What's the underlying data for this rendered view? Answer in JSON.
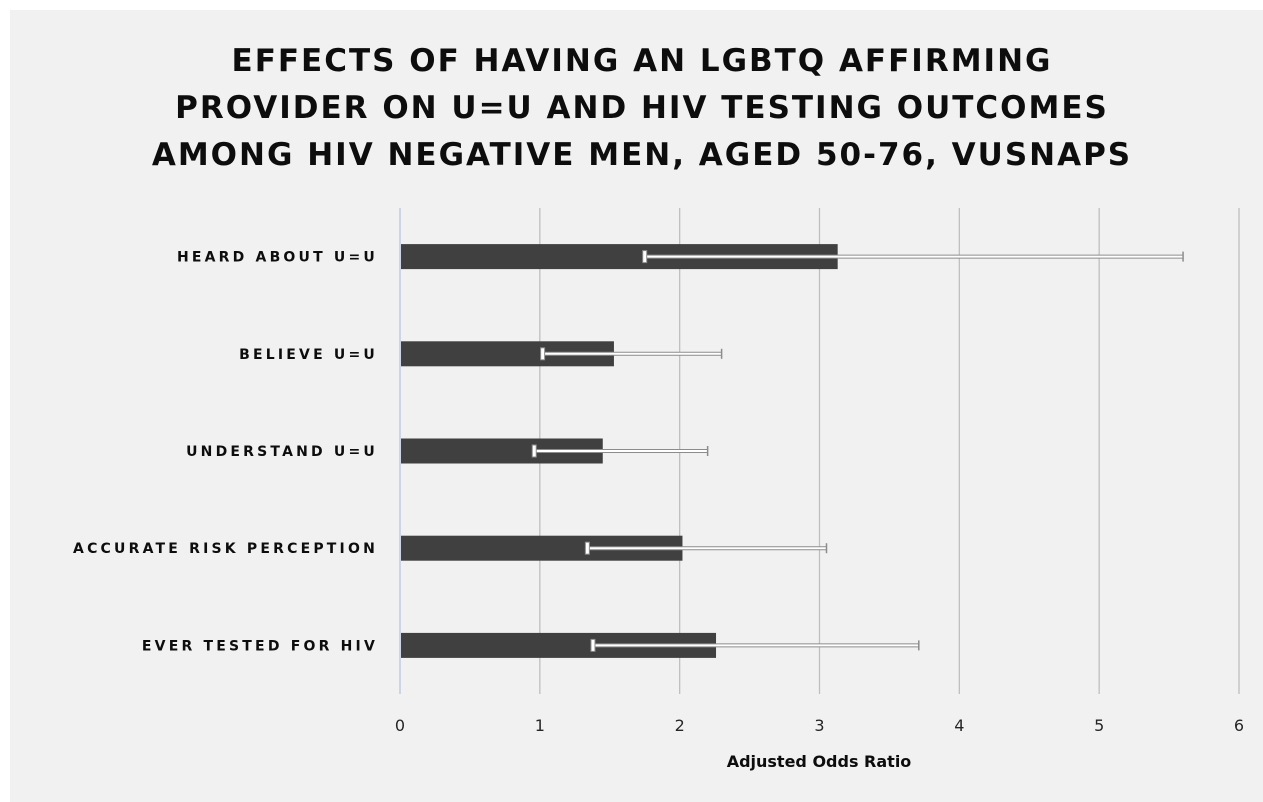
{
  "chart_data": {
    "type": "bar",
    "orientation": "horizontal",
    "title": "EFFECTS OF HAVING AN LGBTQ AFFIRMING\nPROVIDER ON U=U AND HIV TESTING OUTCOMES\nAMONG HIV NEGATIVE MEN, AGED 50-76, VUSNAPS",
    "xlabel": "Adjusted Odds Ratio",
    "ylabel": "",
    "xlim": [
      0,
      6
    ],
    "xticks": [
      "0",
      "1",
      "2",
      "3",
      "4",
      "5",
      "6"
    ],
    "grid": true,
    "categories": [
      "HEARD ABOUT U=U",
      "BELIEVE U=U",
      "UNDERSTAND U=U",
      "ACCURATE RISK PERCEPTION",
      "EVER TESTED FOR HIV"
    ],
    "values": [
      3.13,
      1.53,
      1.45,
      2.02,
      2.26
    ],
    "error_low": [
      1.75,
      1.02,
      0.96,
      1.34,
      1.38
    ],
    "error_high": [
      5.6,
      2.3,
      2.2,
      3.05,
      3.71
    ],
    "bar_color": "#404040",
    "error_bar_color": "#ffffff",
    "background_color": "#f1f1f1",
    "gridline_color": "#bfbfbf"
  }
}
